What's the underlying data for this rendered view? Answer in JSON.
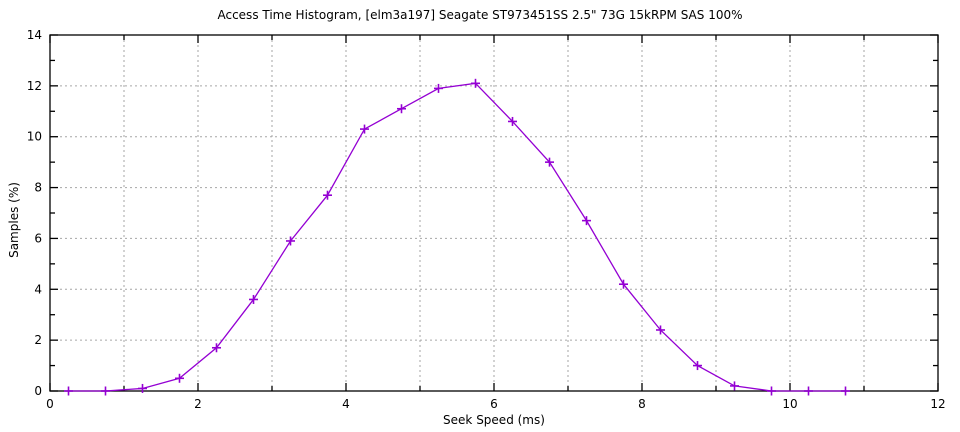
{
  "chart_data": {
    "type": "line",
    "title": "Access Time Histogram, [elm3a197] Seagate ST973451SS 2.5\" 73G 15kRPM SAS 100%",
    "xlabel": "Seek Speed (ms)",
    "ylabel": "Samples (%)",
    "xlim": [
      0,
      12
    ],
    "ylim": [
      0,
      14
    ],
    "x_major_tick_step": 2,
    "x_minor_tick_step": 1,
    "y_major_tick_step": 2,
    "y_minor_tick_step": 1,
    "grid": {
      "x_step": 1,
      "y_step": 2,
      "style": "dotted",
      "color": "#a6a6a6"
    },
    "border_color": "#000000",
    "legend": "none",
    "series": [
      {
        "name": "samples-percent",
        "color": "#9400d3",
        "marker": "plus",
        "x": [
          0.25,
          0.75,
          1.25,
          1.75,
          2.25,
          2.75,
          3.25,
          3.75,
          4.25,
          4.75,
          5.25,
          5.75,
          6.25,
          6.75,
          7.25,
          7.75,
          8.25,
          8.75,
          9.25,
          9.75,
          10.25,
          10.75
        ],
        "y": [
          0,
          0,
          0.1,
          0.5,
          1.7,
          3.6,
          5.9,
          7.7,
          10.3,
          11.1,
          11.9,
          12.1,
          10.6,
          9.0,
          6.7,
          4.2,
          2.4,
          1.0,
          0.2,
          0,
          0,
          0
        ]
      }
    ]
  }
}
